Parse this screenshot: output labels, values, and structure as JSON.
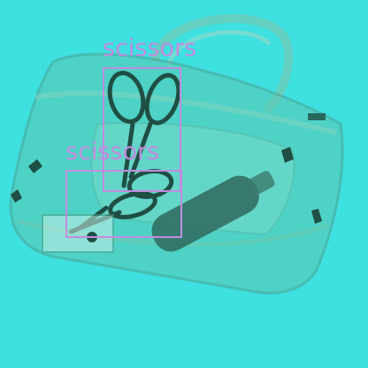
{
  "colors": {
    "background": "#3ee0e0",
    "box_color": "#c28be0",
    "bag_outline": "#5fae9a",
    "dark_object": "#1f4f44"
  },
  "detections": [
    {
      "label": "scissors"
    },
    {
      "label": "scissors"
    }
  ]
}
